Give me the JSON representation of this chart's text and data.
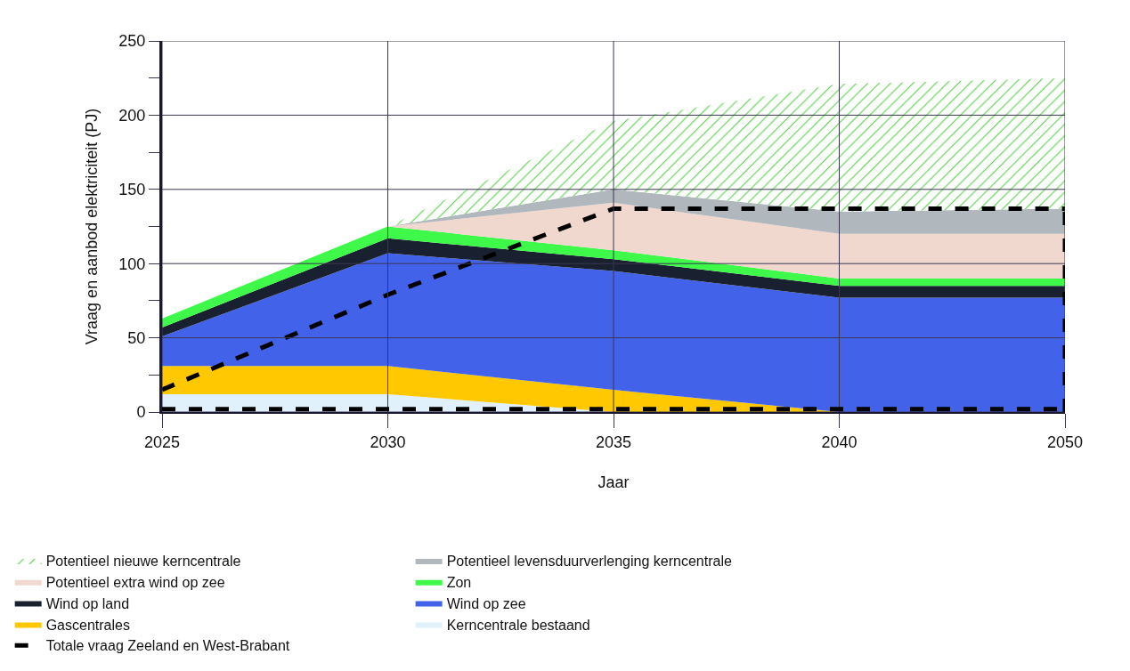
{
  "chart_data": {
    "type": "area",
    "stacked": true,
    "xlabel": "Jaar",
    "ylabel": "Vraag en aanbod elektriciteit (PJ)",
    "categories": [
      "2025",
      "2030",
      "2035",
      "2040",
      "2050"
    ],
    "ylim": [
      0,
      250
    ],
    "yticks": [
      0,
      {
        "value": 25,
        "label": null
      },
      50,
      {
        "value": 75,
        "label": null
      },
      100,
      {
        "value": 125,
        "label": null
      },
      150,
      {
        "value": 175,
        "label": null
      },
      200,
      {
        "value": 225,
        "label": null
      },
      250
    ],
    "grid": true,
    "legend": "bottom",
    "marker": "none",
    "series": [
      {
        "name": "Kerncentrale bestaand",
        "color": "#e0f1fb",
        "values": [
          12,
          12,
          0,
          0,
          0
        ]
      },
      {
        "name": "Gascentrales",
        "color": "#ffc800",
        "values": [
          19,
          19,
          15,
          0,
          0
        ]
      },
      {
        "name": "Wind op zee",
        "color": "#4262ea",
        "values": [
          20,
          76,
          80,
          77,
          77
        ]
      },
      {
        "name": "Wind op land",
        "color": "#19202f",
        "values": [
          6,
          10,
          8,
          8,
          8
        ]
      },
      {
        "name": "Zon",
        "color": "#3ef84a",
        "values": [
          6,
          8,
          6,
          5,
          5
        ]
      },
      {
        "name": "Potentieel extra wind op zee",
        "color": "#f0d8ce",
        "values": [
          null,
          0,
          32,
          30,
          30
        ]
      },
      {
        "name": "Potentieel levensduurverlenging kerncentrale",
        "color": "#b1b8bd",
        "values": [
          null,
          0,
          9,
          15,
          17
        ]
      },
      {
        "name": "Potentieel nieuwe kerncentrale",
        "color": "#50d040",
        "values": [
          null,
          0,
          46,
          86,
          88
        ]
      },
      {
        "name": "Totale vraag Zeeland en West-Brabant",
        "type": "line",
        "line_style": "dashed",
        "color": "#000000",
        "values": [
          15,
          79,
          137,
          137,
          137
        ]
      }
    ],
    "ref_lines": [
      {
        "axis": "y",
        "value": 2,
        "color": "#000000",
        "line_style": "dashed"
      },
      {
        "axis": "x",
        "value": "2050",
        "color": "#000000",
        "line_style": "dashed"
      }
    ]
  }
}
